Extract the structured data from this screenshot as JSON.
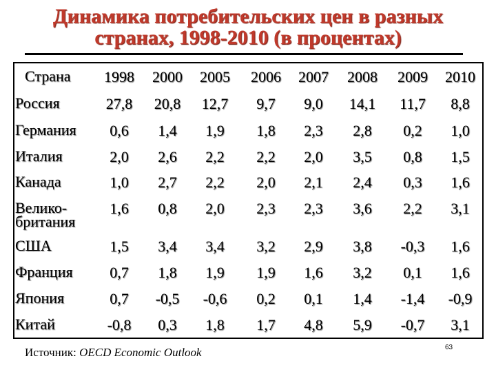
{
  "title": {
    "line1": "Динамика потребительских цен в разных",
    "line2": "странах, 1998-2010 (в процентах)"
  },
  "table": {
    "header_label": "Страна",
    "years": [
      "1998",
      "2000",
      "2005",
      "2006",
      "2007",
      "2008",
      "2009",
      "2010"
    ],
    "rows": [
      {
        "country_lines": [
          "Россия"
        ],
        "values": [
          "27,8",
          "20,8",
          "12,7",
          "9,7",
          "9,0",
          "14,1",
          "11,7",
          "8,8"
        ]
      },
      {
        "country_lines": [
          "Германия"
        ],
        "values": [
          "0,6",
          "1,4",
          "1,9",
          "1,8",
          "2,3",
          "2,8",
          "0,2",
          "1,0"
        ]
      },
      {
        "country_lines": [
          "Италия"
        ],
        "values": [
          "2,0",
          "2,6",
          "2,2",
          "2,2",
          "2,0",
          "3,5",
          "0,8",
          "1,5"
        ]
      },
      {
        "country_lines": [
          "Канада"
        ],
        "values": [
          "1,0",
          "2,7",
          "2,2",
          "2,0",
          "2,1",
          "2,4",
          "0,3",
          "1,6"
        ]
      },
      {
        "country_lines": [
          "Велико-",
          "британия"
        ],
        "values": [
          "1,6",
          "0,8",
          "2,0",
          "2,3",
          "2,3",
          "3,6",
          "2,2",
          "3,1"
        ]
      },
      {
        "country_lines": [
          "США"
        ],
        "values": [
          "1,5",
          "3,4",
          "3,4",
          "3,2",
          "2,9",
          "3,8",
          "-0,3",
          "1,6"
        ]
      },
      {
        "country_lines": [
          "Франция"
        ],
        "values": [
          "0,7",
          "1,8",
          "1,9",
          "1,9",
          "1,6",
          "3,2",
          "0,1",
          "1,6"
        ]
      },
      {
        "country_lines": [
          "Япония"
        ],
        "values": [
          "0,7",
          "-0,5",
          "-0,6",
          "0,2",
          "0,1",
          "1,4",
          "-1,4",
          "-0,9"
        ]
      },
      {
        "country_lines": [
          "Китай"
        ],
        "values": [
          "-0,8",
          "0,3",
          "1,8",
          "1,7",
          "4,8",
          "5,9",
          "-0,7",
          "3,1"
        ]
      }
    ]
  },
  "source": {
    "label": "Источник:",
    "value": "OECD Economic Outlook"
  },
  "page_number": "63"
}
